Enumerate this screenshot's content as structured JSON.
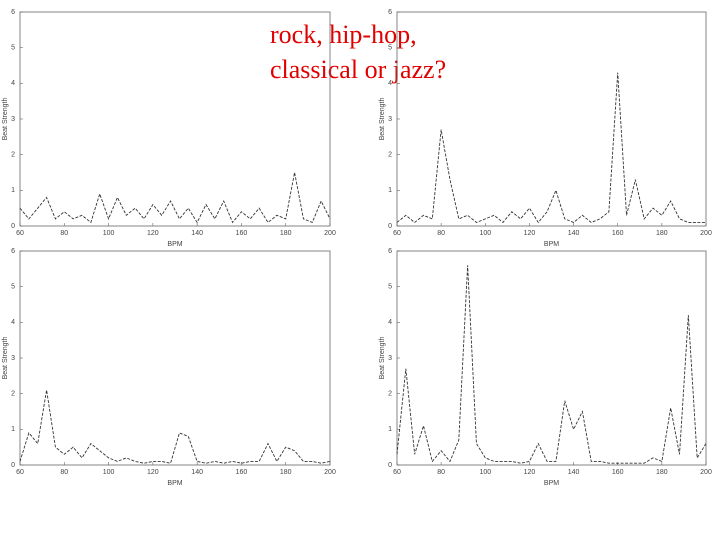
{
  "slide_title": [
    "rock, hip-hop,",
    "classical or jazz?"
  ],
  "chart_data": [
    {
      "type": "line",
      "x_label": "BPM",
      "y_label": "Beat Strength",
      "x": [
        60,
        64,
        68,
        72,
        76,
        80,
        84,
        88,
        92,
        96,
        100,
        104,
        108,
        112,
        116,
        120,
        124,
        128,
        132,
        136,
        140,
        144,
        148,
        152,
        156,
        160,
        164,
        168,
        172,
        176,
        180,
        184,
        188,
        192,
        196,
        200
      ],
      "series": [
        {
          "color": "#333333",
          "values": [
            0.5,
            0.2,
            0.5,
            0.8,
            0.2,
            0.4,
            0.2,
            0.3,
            0.1,
            0.9,
            0.2,
            0.8,
            0.3,
            0.5,
            0.2,
            0.6,
            0.3,
            0.7,
            0.2,
            0.5,
            0.1,
            0.6,
            0.2,
            0.7,
            0.1,
            0.4,
            0.2,
            0.5,
            0.1,
            0.3,
            0.2,
            1.5,
            0.2,
            0.1,
            0.7,
            0.2
          ]
        }
      ],
      "xlim": [
        60,
        200
      ],
      "xticks": [
        60,
        80,
        100,
        120,
        140,
        160,
        180,
        200
      ],
      "ylim": [
        0,
        6
      ],
      "yticks": [
        0,
        1,
        2,
        3,
        4,
        5,
        6
      ]
    },
    {
      "type": "line",
      "x_label": "BPM",
      "y_label": "Beat Strength",
      "x": [
        60,
        64,
        68,
        72,
        76,
        80,
        84,
        88,
        92,
        96,
        100,
        104,
        108,
        112,
        116,
        120,
        124,
        128,
        132,
        136,
        140,
        144,
        148,
        152,
        156,
        160,
        164,
        168,
        172,
        176,
        180,
        184,
        188,
        192,
        196,
        200
      ],
      "series": [
        {
          "color": "#333333",
          "values": [
            0.1,
            0.3,
            0.1,
            0.3,
            0.2,
            2.7,
            1.3,
            0.2,
            0.3,
            0.1,
            0.2,
            0.3,
            0.1,
            0.4,
            0.2,
            0.5,
            0.1,
            0.4,
            1.0,
            0.2,
            0.1,
            0.3,
            0.1,
            0.2,
            0.4,
            4.3,
            0.3,
            1.3,
            0.2,
            0.5,
            0.3,
            0.7,
            0.2,
            0.1,
            0.1,
            0.1
          ]
        }
      ],
      "xlim": [
        60,
        200
      ],
      "xticks": [
        60,
        80,
        100,
        120,
        140,
        160,
        180,
        200
      ],
      "ylim": [
        0,
        6
      ],
      "yticks": [
        0,
        1,
        2,
        3,
        4,
        5,
        6
      ]
    },
    {
      "type": "line",
      "x_label": "BPM",
      "y_label": "Beat Strength",
      "x": [
        60,
        64,
        68,
        72,
        76,
        80,
        84,
        88,
        92,
        96,
        100,
        104,
        108,
        112,
        116,
        120,
        124,
        128,
        132,
        136,
        140,
        144,
        148,
        152,
        156,
        160,
        164,
        168,
        172,
        176,
        180,
        184,
        188,
        192,
        196,
        200
      ],
      "series": [
        {
          "color": "#333333",
          "values": [
            0.1,
            0.9,
            0.6,
            2.1,
            0.5,
            0.3,
            0.5,
            0.2,
            0.6,
            0.4,
            0.2,
            0.1,
            0.2,
            0.1,
            0.05,
            0.1,
            0.1,
            0.05,
            0.9,
            0.8,
            0.1,
            0.05,
            0.1,
            0.05,
            0.1,
            0.05,
            0.1,
            0.1,
            0.6,
            0.1,
            0.5,
            0.4,
            0.1,
            0.1,
            0.05,
            0.1
          ]
        }
      ],
      "xlim": [
        60,
        200
      ],
      "xticks": [
        60,
        80,
        100,
        120,
        140,
        160,
        180,
        200
      ],
      "ylim": [
        0,
        6
      ],
      "yticks": [
        0,
        1,
        2,
        3,
        4,
        5,
        6
      ]
    },
    {
      "type": "line",
      "x_label": "BPM",
      "y_label": "Beat Strength",
      "x": [
        60,
        64,
        68,
        72,
        76,
        80,
        84,
        88,
        92,
        96,
        100,
        104,
        108,
        112,
        116,
        120,
        124,
        128,
        132,
        136,
        140,
        144,
        148,
        152,
        156,
        160,
        164,
        168,
        172,
        176,
        180,
        184,
        188,
        192,
        196,
        200
      ],
      "series": [
        {
          "color": "#333333",
          "values": [
            0.3,
            2.7,
            0.3,
            1.1,
            0.1,
            0.4,
            0.1,
            0.7,
            5.6,
            0.6,
            0.2,
            0.1,
            0.1,
            0.1,
            0.05,
            0.1,
            0.6,
            0.1,
            0.1,
            1.8,
            1.0,
            1.5,
            0.1,
            0.1,
            0.05,
            0.05,
            0.05,
            0.05,
            0.05,
            0.2,
            0.1,
            1.6,
            0.3,
            4.2,
            0.2,
            0.6
          ]
        }
      ],
      "xlim": [
        60,
        200
      ],
      "xticks": [
        60,
        80,
        100,
        120,
        140,
        160,
        180,
        200
      ],
      "ylim": [
        0,
        6
      ],
      "yticks": [
        0,
        1,
        2,
        3,
        4,
        5,
        6
      ]
    }
  ]
}
